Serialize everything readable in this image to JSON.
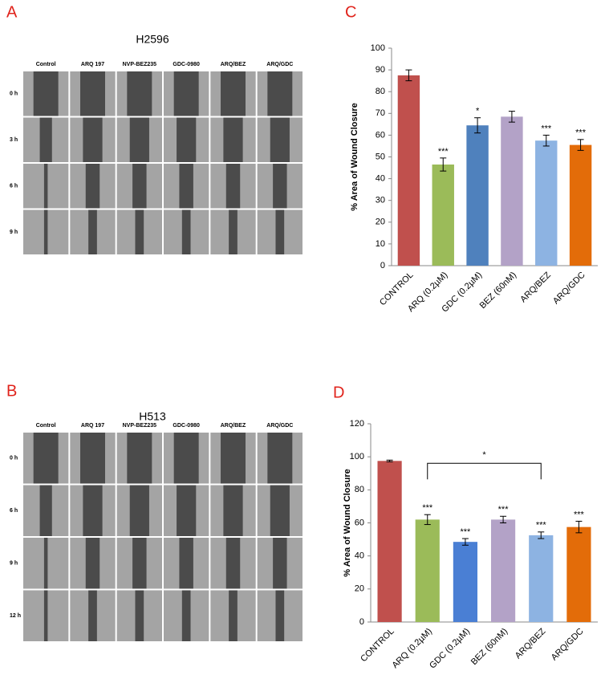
{
  "panels": [
    {
      "letter": "A",
      "title": "H2596",
      "columns": [
        "Control",
        "ARQ 197",
        "NVP-BEZ235",
        "GDC-0980",
        "ARQ/BEZ",
        "ARQ/GDC"
      ],
      "rows": [
        "0 h",
        "3 h",
        "6 h",
        "9 h"
      ]
    },
    {
      "letter": "B",
      "title": "H513",
      "columns": [
        "Control",
        "ARQ 197",
        "NVP-BEZ235",
        "GDC-0980",
        "ARQ/BEZ",
        "ARQ/GDC"
      ],
      "rows": [
        "0 h",
        "6 h",
        "9 h",
        "12 h"
      ]
    }
  ],
  "chart_data": [
    {
      "type": "bar",
      "letter": "C",
      "y_label": "% Area of Wound Closure",
      "categories": [
        "CONTROL",
        "ARQ (0.2µM)",
        "GDC (0.2µM)",
        "BEZ (60nM)",
        "ARQ/BEZ",
        "ARQ/GDC"
      ],
      "values": [
        87.5,
        46.5,
        64.5,
        68.5,
        57.5,
        55.5
      ],
      "errors": [
        2.5,
        3,
        3.5,
        2.5,
        2.5,
        2.5
      ],
      "annotations": [
        null,
        "***",
        "*",
        null,
        "***",
        "***"
      ],
      "colors": [
        "#c0504d",
        "#9bbb59",
        "#4f81bd",
        "#b3a2c7",
        "#8db3e2",
        "#e36c09"
      ],
      "ylim": [
        0,
        100
      ],
      "yticks": [
        0,
        10,
        20,
        30,
        40,
        50,
        60,
        70,
        80,
        90,
        100
      ]
    },
    {
      "type": "bar",
      "letter": "D",
      "y_label": "% Area of Wound Closure",
      "categories": [
        "CONTROL",
        "ARQ (0.2µM)",
        "GDC (0.2µM)",
        "BEZ (60nM)",
        "ARQ/BEZ",
        "ARQ/GDC"
      ],
      "values": [
        97.5,
        62,
        48.5,
        62,
        52.5,
        57.5
      ],
      "errors": [
        0.5,
        3,
        2,
        2,
        2,
        3.5
      ],
      "annotations": [
        null,
        "***",
        "***",
        "***",
        "***",
        "***"
      ],
      "colors": [
        "#c0504d",
        "#9bbb59",
        "#4a7fd4",
        "#b3a2c7",
        "#8db3e2",
        "#e36c09"
      ],
      "bracket": {
        "from": "ARQ (0.2µM)",
        "to": "ARQ/BEZ",
        "label": "*"
      },
      "ylim": [
        0,
        120
      ],
      "yticks": [
        0,
        20,
        40,
        60,
        80,
        100,
        120
      ]
    }
  ]
}
